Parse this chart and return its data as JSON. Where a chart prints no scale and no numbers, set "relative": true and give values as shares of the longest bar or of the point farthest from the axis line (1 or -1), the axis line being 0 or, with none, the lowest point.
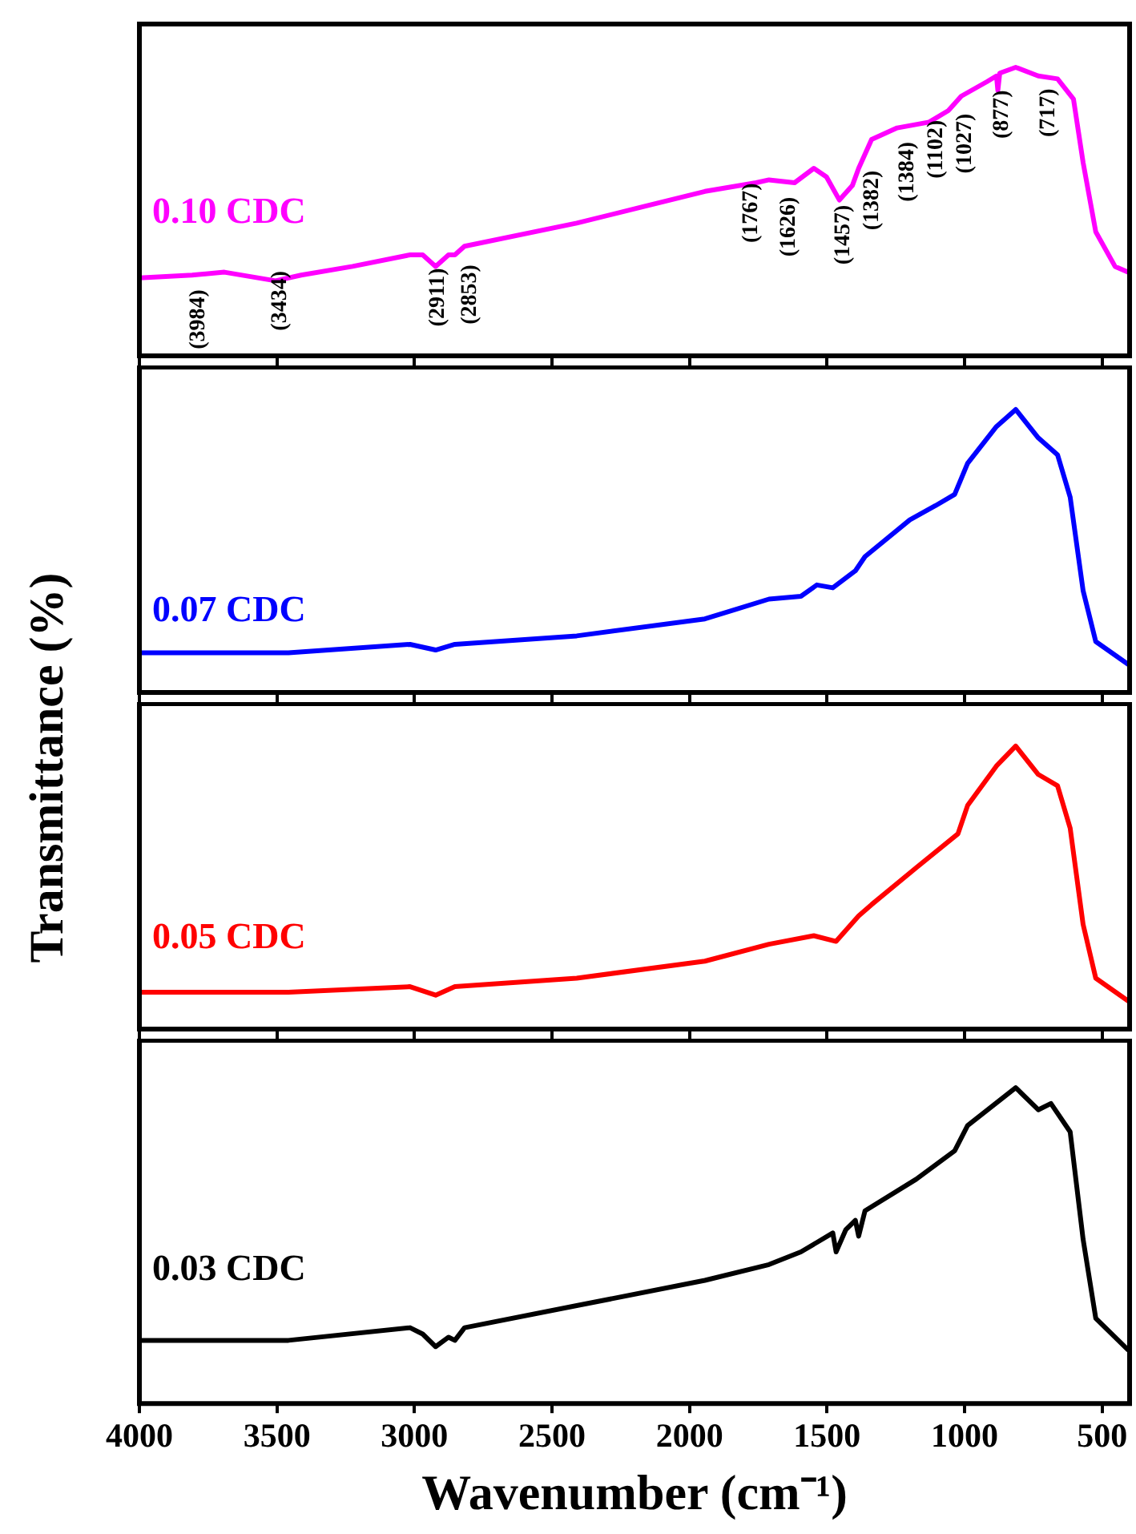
{
  "chart_data": [
    {
      "type": "line",
      "relative": true,
      "xlim": [
        4000,
        400
      ],
      "xticks": [
        4000,
        3500,
        3000,
        2500,
        2000,
        1500,
        1000,
        500
      ],
      "tick_labels": false,
      "x": [
        4000,
        3808,
        3691,
        3505,
        3412,
        3225,
        3016,
        2970,
        2923,
        2876,
        2853,
        2818,
        2410,
        1944,
        1758,
        1711,
        1618,
        1548,
        1502,
        1455,
        1408,
        1385,
        1338,
        1245,
        1129,
        1059,
        1012,
        919,
        884,
        879,
        872,
        814,
        732,
        662,
        604,
        569,
        523,
        453,
        406
      ],
      "series": [
        {
          "name": "0.10 CDC",
          "color": "#ff00ff",
          "values": [
            0.27,
            0.28,
            0.29,
            0.26,
            0.28,
            0.31,
            0.35,
            0.35,
            0.31,
            0.35,
            0.35,
            0.38,
            0.46,
            0.57,
            0.6,
            0.61,
            0.6,
            0.65,
            0.62,
            0.54,
            0.59,
            0.65,
            0.75,
            0.79,
            0.81,
            0.85,
            0.9,
            0.95,
            0.97,
            0.92,
            0.98,
            1,
            0.97,
            0.96,
            0.89,
            0.67,
            0.43,
            0.31,
            0.29
          ]
        }
      ],
      "annotations": [
        "(3984)",
        "(3434)",
        "(2911)",
        "(2853)",
        "(1767)",
        "(1626)",
        "(1457)",
        "(1382)",
        "(1384)",
        "(1102)",
        "(1027)",
        "(877)",
        "(717)"
      ]
    },
    {
      "type": "line",
      "relative": true,
      "xlim": [
        4000,
        400
      ],
      "xticks": [
        4000,
        3500,
        3000,
        2500,
        2000,
        1500,
        1000,
        500
      ],
      "tick_labels": false,
      "x": [
        4000,
        3691,
        3458,
        3016,
        2923,
        2853,
        2410,
        1944,
        1711,
        1595,
        1537,
        1479,
        1397,
        1362,
        1199,
        1106,
        1036,
        989,
        884,
        814,
        732,
        662,
        616,
        569,
        523,
        406
      ],
      "series": [
        {
          "name": "0.07 CDC",
          "color": "#0000ff",
          "values": [
            0.14,
            0.14,
            0.14,
            0.17,
            0.15,
            0.17,
            0.2,
            0.26,
            0.33,
            0.34,
            0.38,
            0.37,
            0.43,
            0.48,
            0.61,
            0.66,
            0.7,
            0.81,
            0.94,
            1,
            0.9,
            0.84,
            0.69,
            0.36,
            0.18,
            0.1
          ]
        }
      ]
    },
    {
      "type": "line",
      "relative": true,
      "ylabel": "Transmittance (%)",
      "xlim": [
        4000,
        400
      ],
      "xticks": [
        4000,
        3500,
        3000,
        2500,
        2000,
        1500,
        1000,
        500
      ],
      "tick_labels": false,
      "x": [
        4000,
        3458,
        3016,
        2923,
        2853,
        2410,
        1944,
        1711,
        1548,
        1467,
        1385,
        1338,
        1176,
        1024,
        989,
        884,
        814,
        732,
        662,
        616,
        569,
        523,
        406
      ],
      "series": [
        {
          "name": "0.05 CDC",
          "color": "#ff0000",
          "values": [
            0.13,
            0.13,
            0.15,
            0.12,
            0.15,
            0.18,
            0.24,
            0.3,
            0.33,
            0.31,
            0.4,
            0.44,
            0.57,
            0.69,
            0.79,
            0.93,
            1,
            0.9,
            0.86,
            0.71,
            0.37,
            0.18,
            0.1
          ]
        }
      ]
    },
    {
      "type": "line",
      "relative": true,
      "xlabel": "Wavenumber (cm⁻¹)",
      "xlim": [
        4000,
        400
      ],
      "xticks": [
        4000,
        3500,
        3000,
        2500,
        2000,
        1500,
        1000,
        500
      ],
      "tick_labels": "x",
      "x": [
        4000,
        3458,
        3016,
        2970,
        2923,
        2876,
        2853,
        2818,
        2410,
        1944,
        1711,
        1595,
        1479,
        1467,
        1432,
        1397,
        1385,
        1362,
        1176,
        1036,
        989,
        814,
        732,
        686,
        616,
        569,
        523,
        406
      ],
      "series": [
        {
          "name": "0.03 CDC",
          "color": "#000000",
          "values": [
            0.2,
            0.2,
            0.24,
            0.22,
            0.18,
            0.21,
            0.2,
            0.24,
            0.31,
            0.39,
            0.44,
            0.48,
            0.54,
            0.48,
            0.55,
            0.58,
            0.53,
            0.61,
            0.71,
            0.8,
            0.88,
            1,
            0.93,
            0.95,
            0.86,
            0.52,
            0.27,
            0.17
          ]
        }
      ]
    }
  ]
}
